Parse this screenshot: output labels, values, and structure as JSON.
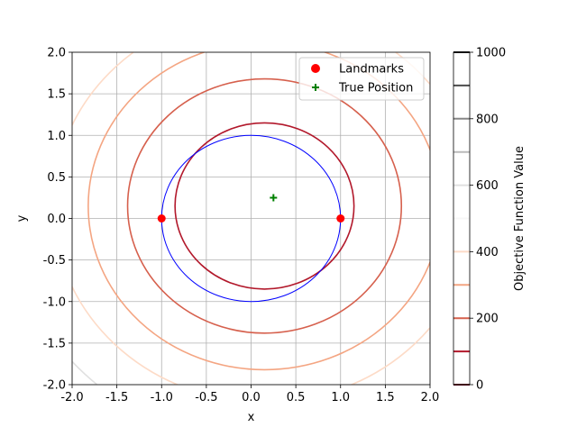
{
  "chart_data": {
    "type": "contour",
    "xlabel": "x",
    "ylabel": "y",
    "xlim": [
      -2.0,
      2.0
    ],
    "ylim": [
      -2.0,
      2.0
    ],
    "grid": true,
    "x_ticks": [
      "-2.0",
      "-1.5",
      "-1.0",
      "-0.5",
      "0.0",
      "0.5",
      "1.0",
      "1.5",
      "2.0"
    ],
    "y_ticks": [
      "-2.0",
      "-1.5",
      "-1.0",
      "-0.5",
      "0.0",
      "0.5",
      "1.0",
      "1.5",
      "2.0"
    ],
    "unit_circle": {
      "center": [
        0,
        0
      ],
      "radius": 1.0,
      "color": "#0000ff"
    },
    "contours": {
      "center": [
        0.15,
        0.15
      ],
      "levels": [
        {
          "value": 100,
          "radius": 1.0,
          "color": "#b2182b"
        },
        {
          "value": 200,
          "radius": 1.53,
          "color": "#d6604d"
        },
        {
          "value": 300,
          "radius": 1.97,
          "color": "#f4a582"
        },
        {
          "value": 400,
          "radius": 2.36,
          "color": "#fddbc7"
        },
        {
          "value": 600,
          "radius": 2.85,
          "color": "#e0e0e0"
        }
      ]
    },
    "landmarks": {
      "name": "Landmarks",
      "color": "#ff0000",
      "points": [
        [
          -1.0,
          0.0
        ],
        [
          1.0,
          0.0
        ]
      ]
    },
    "true_position": {
      "name": "True Position",
      "color": "#008000",
      "point": [
        0.25,
        0.25
      ]
    },
    "legend": {
      "placement": "top-right",
      "entries": [
        "Landmarks",
        "True Position"
      ]
    },
    "colorbar": {
      "label": "Objective Function Value",
      "ticks": [
        "0",
        "200",
        "400",
        "600",
        "800",
        "1000"
      ],
      "tick_values": [
        0,
        200,
        400,
        600,
        800,
        1000
      ],
      "range": [
        0,
        1000
      ],
      "levels": [
        {
          "value": 0,
          "color": "#67001f"
        },
        {
          "value": 100,
          "color": "#b2182b"
        },
        {
          "value": 200,
          "color": "#d6604d"
        },
        {
          "value": 300,
          "color": "#f4a582"
        },
        {
          "value": 400,
          "color": "#fddbc7"
        },
        {
          "value": 500,
          "color": "#f7f7f7"
        },
        {
          "value": 600,
          "color": "#e0e0e0"
        },
        {
          "value": 700,
          "color": "#bababa"
        },
        {
          "value": 800,
          "color": "#878787"
        },
        {
          "value": 900,
          "color": "#4d4d4d"
        },
        {
          "value": 1000,
          "color": "#1a1a1a"
        }
      ]
    }
  }
}
